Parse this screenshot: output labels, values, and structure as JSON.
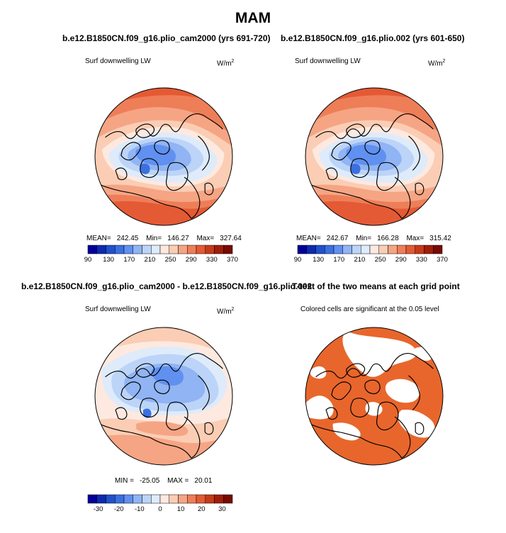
{
  "figure_title": "MAM",
  "colors": {
    "seq": [
      "#000096",
      "#0c2ab0",
      "#2050cc",
      "#3a70e0",
      "#6090f0",
      "#90b4f4",
      "#bcd4f8",
      "#deebfb",
      "#fde9df",
      "#fbcdb4",
      "#f5a584",
      "#ee7e58",
      "#e45a34",
      "#c63a18",
      "#a01e08",
      "#780a00"
    ],
    "diff": [
      "#000096",
      "#0c2ab0",
      "#2050cc",
      "#3a70e0",
      "#6090f0",
      "#90b4f4",
      "#bcd4f8",
      "#deebfb",
      "#fde9df",
      "#fbcdb4",
      "#f5a584",
      "#ee7e58",
      "#e45a34",
      "#c63a18",
      "#a01e08",
      "#780a00"
    ],
    "signif": "#e8662c"
  },
  "chart_data": [
    {
      "type": "heatmap",
      "title": "b.e12.B1850CN.f09_g16.plio_cam2000 (yrs 691-720)",
      "variable": "Surf downwelling LW",
      "units_base": "W/m",
      "units_exp": "2",
      "stats": {
        "mean_label": "MEAN=",
        "mean": "242.45",
        "min_label": "Min=",
        "min": "146.27",
        "max_label": "Max=",
        "max": "327.64"
      },
      "colorbar": {
        "ticks": [
          "90",
          "130",
          "170",
          "210",
          "250",
          "290",
          "330",
          "370"
        ],
        "range": [
          90,
          370
        ]
      }
    },
    {
      "type": "heatmap",
      "title": "b.e12.B1850CN.f09_g16.plio.002 (yrs 601-650)",
      "variable": "Surf downwelling LW",
      "units_base": "W/m",
      "units_exp": "2",
      "stats": {
        "mean_label": "MEAN=",
        "mean": "242.67",
        "min_label": "Min=",
        "min": "166.28",
        "max_label": "Max=",
        "max": "315.42"
      },
      "colorbar": {
        "ticks": [
          "90",
          "130",
          "170",
          "210",
          "250",
          "290",
          "330",
          "370"
        ],
        "range": [
          90,
          370
        ]
      }
    },
    {
      "type": "heatmap",
      "title": "b.e12.B1850CN.f09_g16.plio_cam2000 - b.e12.B1850CN.f09_g16.plio.002",
      "variable": "Surf downwelling LW",
      "units_base": "W/m",
      "units_exp": "2",
      "stats": {
        "min_label": "MIN =",
        "min": "-25.05",
        "max_label": "MAX =",
        "max": "20.01"
      },
      "colorbar": {
        "ticks": [
          "-30",
          "-20",
          "-10",
          "0",
          "10",
          "20",
          "30"
        ],
        "range": [
          -35,
          35
        ]
      }
    },
    {
      "type": "heatmap",
      "title": "T-test of the two means at each grid point",
      "subtitle": "Colored cells are significant at the 0.05 level"
    }
  ]
}
